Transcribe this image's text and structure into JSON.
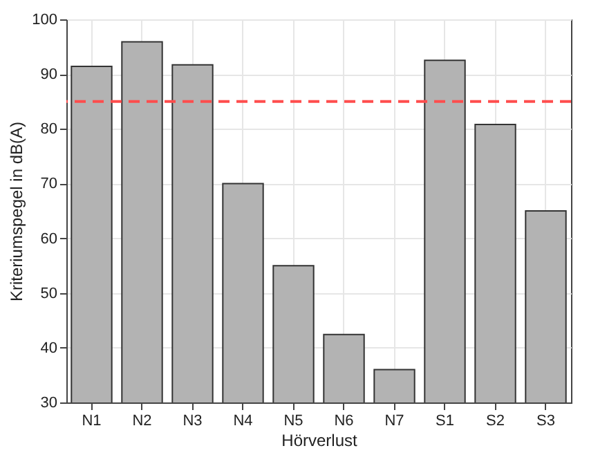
{
  "chart_data": {
    "type": "bar",
    "xlabel": "Hörverlust",
    "ylabel": "Kriteriumspegel in dB(A)",
    "categories": [
      "N1",
      "N2",
      "N3",
      "N4",
      "N5",
      "N6",
      "N7",
      "S1",
      "S2",
      "S3"
    ],
    "values": [
      91.4,
      95.9,
      91.7,
      70,
      55,
      42.4,
      36,
      92.5,
      80.8,
      65
    ],
    "color": "#b3b3b3",
    "ylim": [
      30,
      100
    ],
    "yticks": [
      30,
      40,
      50,
      60,
      70,
      80,
      90,
      100
    ],
    "grid": true,
    "ref_lines": [
      {
        "axis": "y",
        "value": 85,
        "color": "#ff4d4d",
        "line_style": "dashed"
      }
    ]
  }
}
